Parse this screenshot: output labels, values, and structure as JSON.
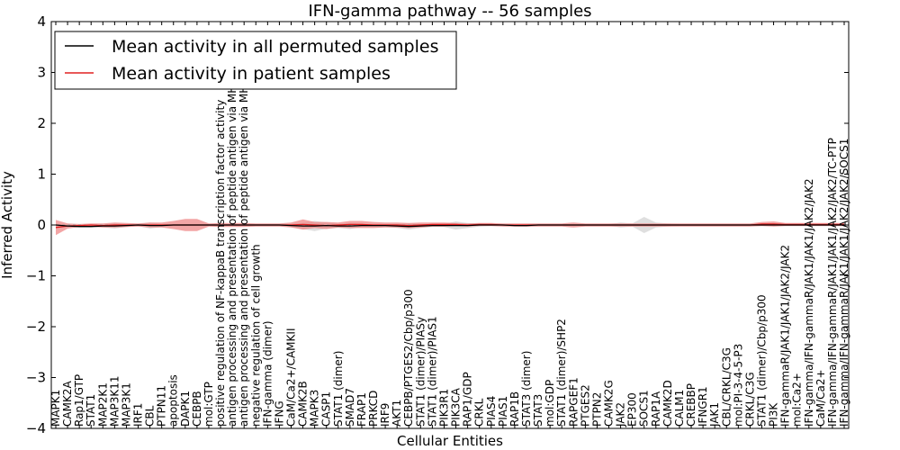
{
  "chart_data": {
    "type": "line",
    "title": "IFN-gamma pathway -- 56 samples",
    "xlabel": "Cellular Entities",
    "ylabel": "Inferred Activity",
    "ylim": [
      -4,
      4
    ],
    "yticks": [
      "−4",
      "−3",
      "−2",
      "−1",
      "0",
      "1",
      "2",
      "3",
      "4"
    ],
    "legend_position": "top-left",
    "categories": [
      "MAPK1",
      "CAMK2A",
      "Rap1/GTP",
      "STAT1",
      "MAP2K1",
      "MAP3K11",
      "MAP3K1",
      "IRF1",
      "CBL",
      "PTPN11",
      "apoptosis",
      "DAPK1",
      "CEBPB",
      "mol:GTP",
      "positive regulation of NF-kappaB transcription factor activity",
      "antigen processing and presentation of peptide antigen via MHC class I",
      "antigen processing and presentation of peptide antigen via MHC class II",
      "negative regulation of cell growth",
      "IFN-gamma (dimer)",
      "IFNG",
      "CaM/Ca2+/CAMKII",
      "CAMK2B",
      "MAPK3",
      "CASP1",
      "STAT1 (dimer)",
      "SMAD7",
      "FRAP1",
      "PRKCD",
      "IRF9",
      "AKT1",
      "CEBPB/PTGES2/Cbp/p300",
      "STAT1 (dimer)/PIASy",
      "STAT1 (dimer)/PIAS1",
      "PIK3R1",
      "PIK3CA",
      "RAP1/GDP",
      "CRKL",
      "PIAS4",
      "PIAS1",
      "RAP1B",
      "STAT3 (dimer)",
      "STAT3",
      "mol:GDP",
      "STAT1 (dimer)/SHP2",
      "RAPGEF1",
      "PTGES2",
      "PTPN2",
      "CAMK2G",
      "JAK2",
      "EP300",
      "SOCS1",
      "RAP1A",
      "CAMK2D",
      "CALM1",
      "CREBBP",
      "IFNGR1",
      "JAK1",
      "CBL/CRKL/C3G",
      "mol:PI-3-4-5-P3",
      "CRKL/C3G",
      "STAT1 (dimer)/Cbp/p300",
      "PI3K",
      "IFN-gammaR/JAK1/JAK1/JAK2/JAK2",
      "mol:Ca2+",
      "IFN-gamma/IFN-gammaR/JAK1/JAK1/JAK2/JAK2",
      "CaM/Ca2+",
      "IFN-gamma/IFN-gammaR/JAK1/JAK1/JAK2/JAK2/TC-PTP",
      "IFN-gamma/IFN-gammaR/JAK1/JAK1/JAK2/JAK2/SOCS1"
    ],
    "series": [
      {
        "name": "Mean activity in all permuted samples",
        "color": "#000000",
        "band_color": "#b8b8b8",
        "values": [
          0.0,
          -0.02,
          -0.03,
          -0.03,
          -0.02,
          -0.02,
          -0.01,
          0.0,
          -0.01,
          -0.01,
          0.0,
          0.0,
          0.0,
          0.0,
          0.0,
          0.0,
          0.0,
          0.0,
          0.0,
          0.0,
          -0.01,
          -0.02,
          -0.02,
          -0.01,
          -0.02,
          -0.02,
          -0.01,
          -0.01,
          -0.01,
          -0.02,
          -0.03,
          -0.02,
          -0.01,
          -0.01,
          -0.01,
          -0.01,
          0.0,
          0.0,
          0.0,
          -0.01,
          -0.01,
          0.0,
          0.0,
          0.0,
          0.0,
          0.0,
          0.0,
          0.0,
          0.0,
          0.0,
          0.0,
          0.0,
          0.0,
          0.0,
          0.0,
          0.0,
          0.0,
          0.0,
          0.0,
          0.0,
          0.0,
          0.0,
          0.0,
          0.0,
          0.0,
          0.0,
          0.0,
          0.0
        ],
        "spread": [
          0.02,
          0.03,
          0.02,
          0.02,
          0.03,
          0.05,
          0.03,
          0.02,
          0.06,
          0.03,
          0.02,
          0.02,
          0.02,
          0.02,
          0.02,
          0.02,
          0.02,
          0.02,
          0.02,
          0.02,
          0.03,
          0.06,
          0.1,
          0.06,
          0.04,
          0.06,
          0.03,
          0.03,
          0.03,
          0.04,
          0.06,
          0.04,
          0.03,
          0.03,
          0.08,
          0.05,
          0.03,
          0.02,
          0.02,
          0.02,
          0.03,
          0.02,
          0.02,
          0.02,
          0.02,
          0.02,
          0.02,
          0.02,
          0.05,
          0.03,
          0.16,
          0.05,
          0.03,
          0.02,
          0.02,
          0.02,
          0.02,
          0.02,
          0.02,
          0.02,
          0.02,
          0.02,
          0.02,
          0.02,
          0.02,
          0.02,
          0.02,
          0.02
        ]
      },
      {
        "name": "Mean activity in patient samples",
        "color": "#e02020",
        "band_color": "#ee7f7f",
        "values": [
          -0.05,
          -0.02,
          -0.01,
          0.0,
          -0.01,
          0.0,
          0.0,
          0.0,
          0.0,
          0.0,
          0.0,
          0.0,
          0.0,
          0.0,
          0.0,
          0.0,
          0.0,
          0.0,
          0.0,
          0.0,
          0.0,
          0.01,
          0.0,
          -0.01,
          0.0,
          0.01,
          0.01,
          0.0,
          0.0,
          0.0,
          -0.01,
          0.0,
          0.01,
          0.01,
          0.01,
          0.0,
          0.01,
          0.01,
          0.0,
          0.0,
          0.0,
          0.0,
          0.0,
          0.0,
          0.0,
          0.0,
          0.0,
          0.0,
          0.0,
          0.0,
          0.0,
          0.0,
          0.0,
          0.0,
          0.0,
          0.0,
          0.0,
          0.0,
          0.0,
          0.0,
          0.02,
          0.02,
          0.01,
          0.01,
          0.01,
          0.01,
          0.01,
          0.01
        ],
        "spread": [
          0.15,
          0.05,
          0.03,
          0.03,
          0.04,
          0.05,
          0.04,
          0.03,
          0.05,
          0.05,
          0.08,
          0.12,
          0.12,
          0.03,
          0.04,
          0.04,
          0.04,
          0.03,
          0.03,
          0.03,
          0.05,
          0.1,
          0.06,
          0.07,
          0.05,
          0.07,
          0.07,
          0.06,
          0.05,
          0.05,
          0.05,
          0.05,
          0.04,
          0.04,
          0.03,
          0.03,
          0.03,
          0.03,
          0.03,
          0.03,
          0.03,
          0.03,
          0.03,
          0.03,
          0.05,
          0.03,
          0.03,
          0.03,
          0.03,
          0.03,
          0.03,
          0.03,
          0.03,
          0.03,
          0.03,
          0.03,
          0.03,
          0.03,
          0.03,
          0.03,
          0.04,
          0.05,
          0.03,
          0.03,
          0.03,
          0.03,
          0.03,
          0.03
        ]
      }
    ]
  }
}
